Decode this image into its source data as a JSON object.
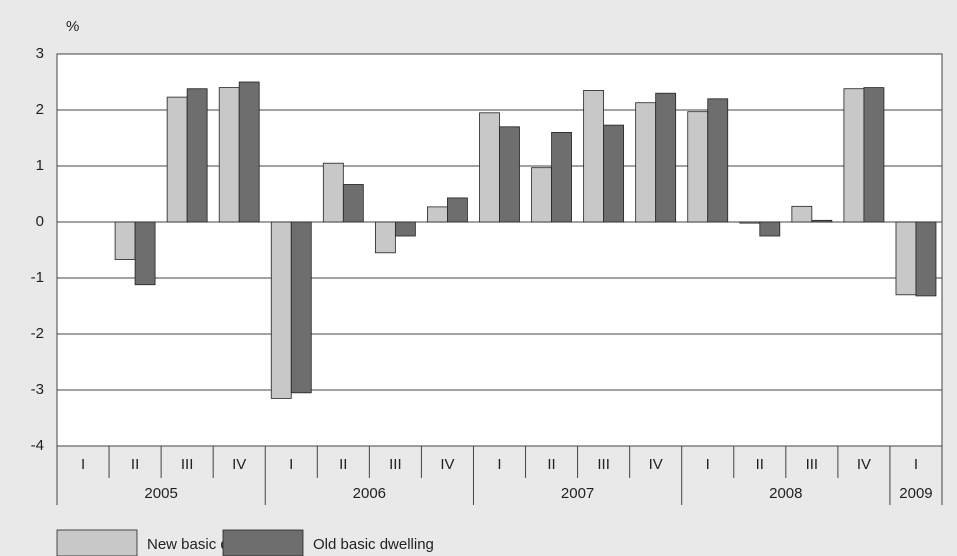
{
  "chart_data": {
    "type": "bar",
    "y_label": "%",
    "groups": [
      {
        "label": "2005",
        "categories": [
          "I",
          "II",
          "III",
          "IV"
        ]
      },
      {
        "label": "2006",
        "categories": [
          "I",
          "II",
          "III",
          "IV"
        ]
      },
      {
        "label": "2007",
        "categories": [
          "I",
          "II",
          "III",
          "IV"
        ]
      },
      {
        "label": "2008",
        "categories": [
          "I",
          "II",
          "III",
          "IV"
        ]
      },
      {
        "label": "2009",
        "categories": [
          "I"
        ]
      }
    ],
    "series": [
      {
        "name": "New basic dwelling",
        "color": "#c8c8c8",
        "values": [
          null,
          -0.67,
          2.23,
          2.4,
          -3.15,
          1.05,
          -0.55,
          0.27,
          1.95,
          0.97,
          2.35,
          2.13,
          1.97,
          -0.02,
          0.28,
          2.38,
          -1.3
        ]
      },
      {
        "name": "Old basic dwelling",
        "color": "#6e6e6e",
        "values": [
          null,
          -1.12,
          2.38,
          2.5,
          -3.05,
          0.67,
          -0.25,
          0.43,
          1.7,
          1.6,
          1.73,
          2.3,
          2.2,
          -0.25,
          0.03,
          2.4,
          -1.32
        ]
      }
    ],
    "ylim": [
      -4,
      3
    ],
    "yticks": [
      -4,
      -3,
      -2,
      -1,
      0,
      1,
      2,
      3
    ],
    "grid": true
  }
}
